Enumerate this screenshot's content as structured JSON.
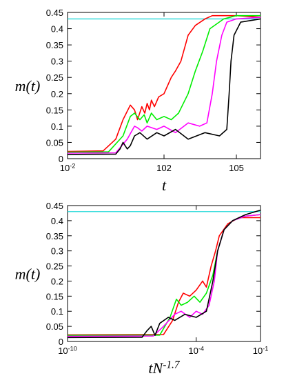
{
  "chart_data": [
    {
      "type": "line",
      "xlabel": "t",
      "ylabel": "m(t)",
      "xscale": "log",
      "xlim": [
        0.01,
        1000000
      ],
      "ylim": [
        0,
        0.45
      ],
      "xticks": [
        {
          "value": 0.01,
          "label": "10-2"
        },
        {
          "value": 100,
          "label": "102"
        },
        {
          "value": 100000,
          "label": "105"
        }
      ],
      "yticks": [
        0,
        0.05,
        0.1,
        0.15,
        0.2,
        0.25,
        0.3,
        0.35,
        0.4,
        0.45
      ],
      "reference_line": {
        "value": 0.43,
        "color": "#22d8d8"
      },
      "series": [
        {
          "color": "#ff0000",
          "x": [
            0.01,
            0.3,
            1,
            2,
            4,
            6,
            8,
            12,
            16,
            20,
            25,
            30,
            40,
            60,
            100,
            200,
            300,
            500,
            1000,
            2000,
            5000,
            10000,
            100000,
            1000000
          ],
          "values": [
            0.022,
            0.024,
            0.06,
            0.12,
            0.165,
            0.15,
            0.12,
            0.16,
            0.14,
            0.17,
            0.15,
            0.18,
            0.16,
            0.19,
            0.2,
            0.25,
            0.27,
            0.3,
            0.38,
            0.41,
            0.43,
            0.44,
            0.44,
            0.435
          ]
        },
        {
          "color": "#00ee00",
          "x": [
            0.01,
            0.5,
            2,
            4,
            6,
            10,
            15,
            20,
            30,
            50,
            100,
            200,
            400,
            1000,
            2000,
            4000,
            8000,
            30000,
            100000,
            1000000
          ],
          "values": [
            0.02,
            0.021,
            0.07,
            0.13,
            0.14,
            0.12,
            0.135,
            0.11,
            0.14,
            0.12,
            0.13,
            0.12,
            0.14,
            0.2,
            0.27,
            0.33,
            0.4,
            0.43,
            0.44,
            0.44
          ]
        },
        {
          "color": "#ff00ff",
          "x": [
            0.01,
            1,
            3,
            6,
            8,
            12,
            20,
            50,
            100,
            300,
            1000,
            3000,
            6000,
            10000,
            15000,
            25000,
            40000,
            100000,
            1000000
          ],
          "values": [
            0.017,
            0.018,
            0.06,
            0.1,
            0.095,
            0.085,
            0.1,
            0.09,
            0.1,
            0.08,
            0.11,
            0.1,
            0.11,
            0.2,
            0.3,
            0.38,
            0.42,
            0.43,
            0.435
          ]
        },
        {
          "color": "#000000",
          "x": [
            0.01,
            1,
            1.5,
            2,
            3,
            4,
            6,
            10,
            20,
            50,
            100,
            300,
            1000,
            5000,
            20000,
            40000,
            50000,
            60000,
            80000,
            150000,
            1000000
          ],
          "values": [
            0.013,
            0.014,
            0.03,
            0.05,
            0.03,
            0.04,
            0.07,
            0.08,
            0.06,
            0.08,
            0.07,
            0.09,
            0.06,
            0.08,
            0.07,
            0.09,
            0.2,
            0.3,
            0.38,
            0.42,
            0.43
          ]
        }
      ]
    },
    {
      "type": "line",
      "xlabel": "tN-1.7",
      "ylabel": "m(t)",
      "xscale": "log",
      "xlim": [
        1e-10,
        0.1
      ],
      "ylim": [
        0,
        0.45
      ],
      "xticks": [
        {
          "value": 1e-10,
          "label": "10-10"
        },
        {
          "value": 0.0001,
          "label": "10-4"
        },
        {
          "value": 0.1,
          "label": "10-1"
        }
      ],
      "yticks": [
        0,
        0.05,
        0.1,
        0.15,
        0.2,
        0.25,
        0.3,
        0.35,
        0.4,
        0.45
      ],
      "reference_line": {
        "value": 0.43,
        "color": "#22d8d8"
      },
      "series": [
        {
          "color": "#ff0000",
          "x": [
            1e-10,
            3e-06,
            8e-06,
            1.5e-05,
            2.5e-05,
            5e-05,
            0.0001,
            0.0002,
            0.0003,
            0.0005,
            0.0008,
            0.0012,
            0.003,
            0.01,
            0.1
          ],
          "values": [
            0.022,
            0.023,
            0.07,
            0.13,
            0.16,
            0.15,
            0.17,
            0.2,
            0.18,
            0.25,
            0.3,
            0.35,
            0.39,
            0.41,
            0.41
          ]
        },
        {
          "color": "#00ee00",
          "x": [
            1e-10,
            2e-06,
            6e-06,
            1.2e-05,
            2e-05,
            4e-05,
            8e-05,
            0.00015,
            0.0003,
            0.0006,
            0.001,
            0.002,
            0.005,
            0.02,
            0.1
          ],
          "values": [
            0.02,
            0.021,
            0.08,
            0.14,
            0.12,
            0.13,
            0.15,
            0.13,
            0.16,
            0.22,
            0.3,
            0.37,
            0.4,
            0.415,
            0.42
          ]
        },
        {
          "color": "#ff00ff",
          "x": [
            1e-10,
            1e-06,
            3e-06,
            1e-05,
            2e-05,
            5e-05,
            0.0001,
            0.0002,
            0.0004,
            0.0007,
            0.001,
            0.002,
            0.005,
            0.02,
            0.1
          ],
          "values": [
            0.017,
            0.018,
            0.05,
            0.09,
            0.1,
            0.08,
            0.1,
            0.09,
            0.12,
            0.2,
            0.3,
            0.37,
            0.4,
            0.415,
            0.42
          ]
        },
        {
          "color": "#000000",
          "x": [
            1e-10,
            3e-07,
            5e-07,
            8e-07,
            1.2e-06,
            2e-06,
            5e-06,
            1e-05,
            3e-05,
            0.0001,
            0.0003,
            0.0006,
            0.001,
            0.002,
            0.005,
            0.02,
            0.1
          ],
          "values": [
            0.013,
            0.014,
            0.035,
            0.05,
            0.02,
            0.06,
            0.08,
            0.07,
            0.09,
            0.08,
            0.1,
            0.2,
            0.3,
            0.37,
            0.4,
            0.42,
            0.435
          ]
        }
      ]
    }
  ]
}
